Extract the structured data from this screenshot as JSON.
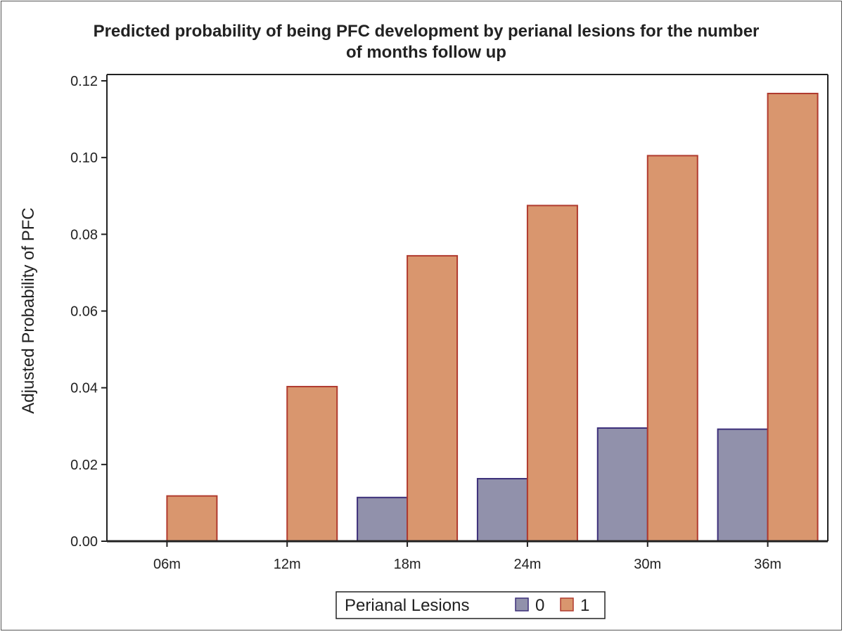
{
  "chart_data": {
    "type": "bar",
    "title_line1": "Predicted probability of being PFC development by perianal lesions for the number",
    "title_line2": "of months follow up",
    "ylabel": "Adjusted Probability of PFC",
    "xlabel": "",
    "ylim": [
      0,
      0.12
    ],
    "yticks": [
      "0.00",
      "0.02",
      "0.04",
      "0.06",
      "0.08",
      "0.10",
      "0.12"
    ],
    "categories": [
      "06m",
      "12m",
      "18m",
      "24m",
      "30m",
      "36m"
    ],
    "series": [
      {
        "name": "0",
        "color": "#9191ab",
        "edge": "#3c2f7a",
        "values": [
          0.0,
          0.0,
          0.0114,
          0.0163,
          0.0295,
          0.0292
        ]
      },
      {
        "name": "1",
        "color": "#d9966e",
        "edge": "#b03a2e",
        "values": [
          0.0118,
          0.0403,
          0.0744,
          0.0875,
          0.1005,
          0.1167
        ]
      }
    ],
    "legend": {
      "title": "Perianal Lesions",
      "placement": "bottom-center"
    },
    "grid": false
  }
}
